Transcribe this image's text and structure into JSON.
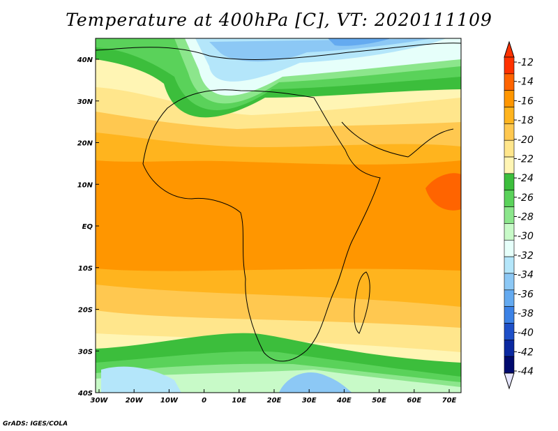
{
  "title": "Temperature at 400hPa [C], VT: 2020111109",
  "footer": "GrADS: IGES/COLA",
  "map": {
    "lon_labels": [
      "30W",
      "20W",
      "10W",
      "0",
      "10E",
      "20E",
      "30E",
      "40E",
      "50E",
      "60E",
      "70E"
    ],
    "lat_labels": [
      "40N",
      "30N",
      "20N",
      "10N",
      "EQ",
      "10S",
      "20S",
      "30S",
      "40S"
    ],
    "lon_range": [
      -30,
      75
    ],
    "lat_range": [
      -40,
      45
    ]
  },
  "colorbar": {
    "labels": [
      "-12",
      "-14",
      "-16",
      "-18",
      "-20",
      "-22",
      "-24",
      "-26",
      "-28",
      "-30",
      "-32",
      "-34",
      "-36",
      "-38",
      "-40",
      "-42",
      "-44"
    ],
    "colors": [
      "#ff3200",
      "#ff6400",
      "#ff9600",
      "#ffb41e",
      "#ffc850",
      "#ffe68c",
      "#fff5b4",
      "#3cbe3c",
      "#5ad25a",
      "#8ce68c",
      "#c8fac8",
      "#e6fffa",
      "#b4e6fa",
      "#8cc8f5",
      "#64aaf0",
      "#3c82e6",
      "#1e50c8",
      "#0a28a0",
      "#000a6e"
    ],
    "tip_top_color": "#ff3200",
    "tip_bottom_color": "#e6e6ff"
  },
  "regions": {
    "tropics": "#ff9600",
    "subtropics": "#ffb41e",
    "warm_mid": "#ffc850",
    "cool_mid": "#ffe68c",
    "pale": "#fff5b4",
    "green": "#3cbe3c",
    "mid_green": "#5ad25a",
    "light_green": "#8ce68c",
    "pale_green": "#c8fac8",
    "ice": "#e6fffa",
    "sky": "#b4e6fa",
    "blue": "#8cc8f5",
    "deep_blue": "#64aaf0",
    "hot": "#ff6400"
  }
}
